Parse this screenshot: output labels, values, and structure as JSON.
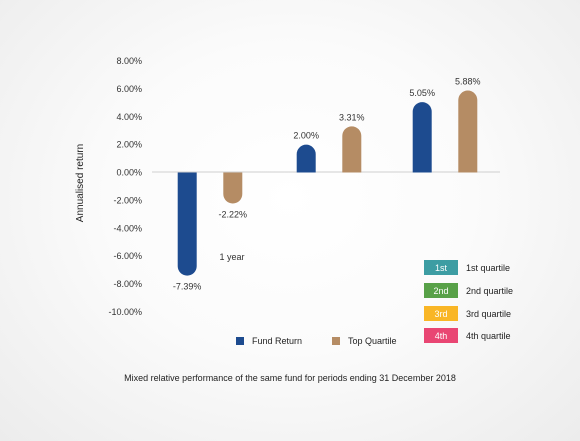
{
  "chart_data": {
    "type": "bar",
    "ylabel": "Annualised return",
    "ylim": [
      -10,
      8
    ],
    "yticks": [
      "8.00%",
      "6.00%",
      "4.00%",
      "2.00%",
      "0.00%",
      "-2.00%",
      "-4.00%",
      "-6.00%",
      "-8.00%",
      "-10.00%"
    ],
    "categories": [
      "1 year",
      "",
      ""
    ],
    "series": [
      {
        "name": "Fund Return",
        "color": "#1d4b8f",
        "values": [
          -7.39,
          2.0,
          5.05
        ],
        "labels": [
          "-7.39%",
          "2.00%",
          "5.05%"
        ]
      },
      {
        "name": "Top Quartile",
        "color": "#b58c64",
        "values": [
          -2.22,
          3.31,
          5.88
        ],
        "labels": [
          "-2.22%",
          "3.31%",
          "5.88%"
        ]
      }
    ],
    "legend_position": "bottom",
    "grid": false,
    "caption": "Mixed relative performance of the same fund for periods ending 31 December 2018"
  },
  "quartile_legend": [
    {
      "badge": "1st",
      "label": "1st quartile",
      "color": "#3d9da3"
    },
    {
      "badge": "2nd",
      "label": "2nd quartile",
      "color": "#58a148"
    },
    {
      "badge": "3rd",
      "label": "3rd quartile",
      "color": "#f9b626"
    },
    {
      "badge": "4th",
      "label": "4th quartile",
      "color": "#e94673"
    }
  ]
}
